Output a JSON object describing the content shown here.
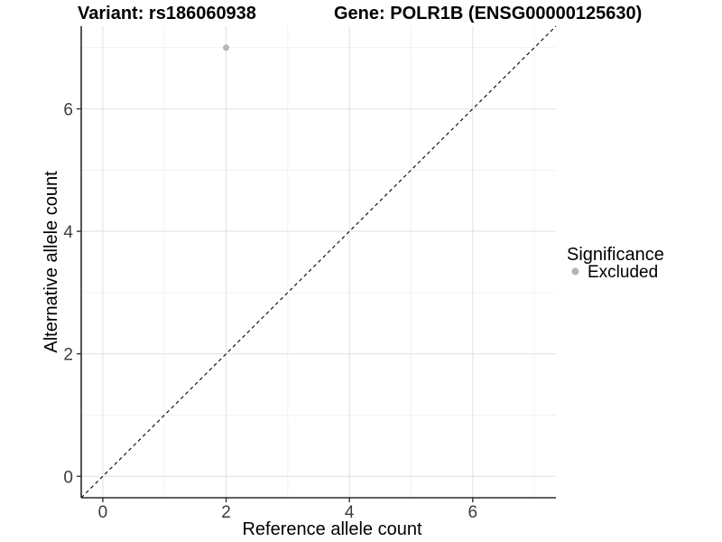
{
  "header": {
    "variant_title": "Variant: rs186060938",
    "gene_title": "Gene: POLR1B (ENSG00000125630)"
  },
  "chart_data": {
    "type": "scatter",
    "xlabel": "Reference allele count",
    "ylabel": "Alternative allele count",
    "xlim": [
      -0.35,
      7.35
    ],
    "ylim": [
      -0.35,
      7.35
    ],
    "x_major_ticks": [
      0,
      2,
      4,
      6
    ],
    "y_major_ticks": [
      0,
      2,
      4,
      6
    ],
    "x_minor_ticks": [
      1,
      3,
      5,
      7
    ],
    "y_minor_ticks": [
      1,
      3,
      5,
      7
    ],
    "grid": true,
    "points": [
      {
        "x": 2,
        "y": 7,
        "series": "Excluded"
      }
    ],
    "identity_line": {
      "shown": true,
      "style": "dashed",
      "slope": 1,
      "intercept": 0
    },
    "legend": {
      "title": "Significance",
      "position": "right",
      "items": [
        {
          "label": "Excluded",
          "color": "#b5b5b5"
        }
      ]
    },
    "colors": {
      "point": "#b5b5b5",
      "grid_major": "#e3e3e3",
      "grid_minor": "#f0f0f0",
      "axis_line": "#2b2b2b",
      "tick_mark": "#333333",
      "dashed_line": "#000000",
      "background": "#ffffff"
    }
  }
}
